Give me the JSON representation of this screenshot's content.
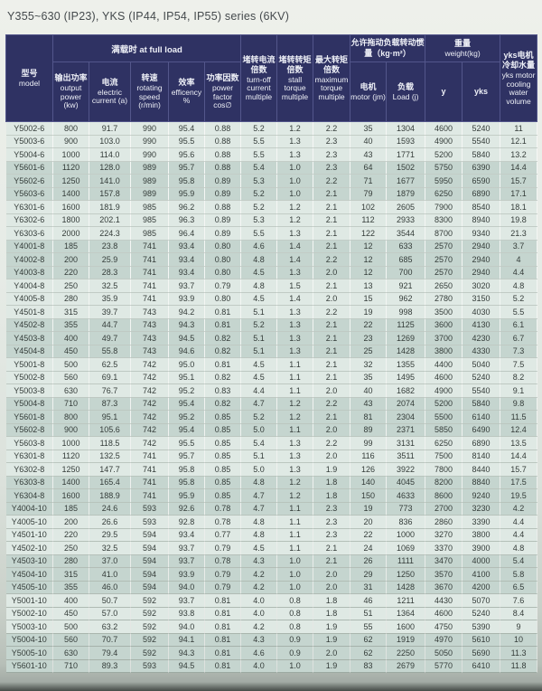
{
  "title": "Y355~630 (IP23), YKS (IP44, IP54, IP55) series (6KV)",
  "colors": {
    "header_bg": "#2f3263",
    "header_text": "#eef0f7",
    "band_light": "#dfe9e4",
    "band_dark": "#c5d5cf",
    "row_text": "#343c39",
    "title_text": "#454a4d",
    "page_bg_top": "#eef0eb",
    "page_bg_bottom": "#b7bfb8"
  },
  "table": {
    "header": {
      "model": {
        "zh": "型号",
        "en": "model"
      },
      "full_load_group": "满载时 at full load",
      "output_power": {
        "zh": "输出功率",
        "en": "output power (kw)"
      },
      "electric_current": {
        "zh": "电流",
        "en": "electric current (a)"
      },
      "rotating_speed": {
        "zh": "转速",
        "en": "rotating speed (r/min)"
      },
      "efficiency": {
        "zh": "效率",
        "en": "efficency %"
      },
      "power_factor": {
        "zh": "功率因数",
        "en": "power factor cos∅"
      },
      "turnoff_current": {
        "zh": "堵转电流倍数",
        "en": "turn-off current multiple"
      },
      "stall_torque": {
        "zh": "堵转转矩倍数",
        "en": "stall torque multiple"
      },
      "max_torque": {
        "zh": "最大转矩倍数",
        "en": "maximum torque multiple"
      },
      "inertia_group": "允许拖动负载转动惯量（kg·m²）",
      "motor_jm": {
        "zh": "电机",
        "en": "motor (jm)"
      },
      "load_j": {
        "zh": "负载",
        "en": "Load (j)"
      },
      "weight_group": {
        "zh": "重量",
        "en": "weight(kg)"
      },
      "weight_y": "y",
      "weight_yks": "yks",
      "cooling": {
        "zh": "yks电机冷却水量",
        "en": "yks motor cooling water volume"
      }
    },
    "rows": [
      [
        "Y5002-6",
        "800",
        "91.7",
        "990",
        "95.4",
        "0.88",
        "5.2",
        "1.2",
        "2.2",
        "35",
        "1304",
        "4600",
        "5240",
        "11"
      ],
      [
        "Y5003-6",
        "900",
        "103.0",
        "990",
        "95.5",
        "0.88",
        "5.5",
        "1.3",
        "2.3",
        "40",
        "1593",
        "4900",
        "5540",
        "12.1"
      ],
      [
        "Y5004-6",
        "1000",
        "114.0",
        "990",
        "95.6",
        "0.88",
        "5.5",
        "1.3",
        "2.3",
        "43",
        "1771",
        "5200",
        "5840",
        "13.2"
      ],
      [
        "Y5601-6",
        "1120",
        "128.0",
        "989",
        "95.7",
        "0.88",
        "5.4",
        "1.0",
        "2.3",
        "64",
        "1502",
        "5750",
        "6390",
        "14.4"
      ],
      [
        "Y5602-6",
        "1250",
        "141.0",
        "989",
        "95.8",
        "0.89",
        "5.3",
        "1.0",
        "2.2",
        "71",
        "1677",
        "5950",
        "6590",
        "15.7"
      ],
      [
        "Y5603-6",
        "1400",
        "157.8",
        "989",
        "95.9",
        "0.89",
        "5.2",
        "1.0",
        "2.1",
        "79",
        "1879",
        "6250",
        "6890",
        "17.1"
      ],
      [
        "Y6301-6",
        "1600",
        "181.9",
        "985",
        "96.2",
        "0.88",
        "5.2",
        "1.2",
        "2.1",
        "102",
        "2605",
        "7900",
        "8540",
        "18.1"
      ],
      [
        "Y6302-6",
        "1800",
        "202.1",
        "985",
        "96.3",
        "0.89",
        "5.3",
        "1.2",
        "2.1",
        "112",
        "2933",
        "8300",
        "8940",
        "19.8"
      ],
      [
        "Y6303-6",
        "2000",
        "224.3",
        "985",
        "96.4",
        "0.89",
        "5.5",
        "1.3",
        "2.1",
        "122",
        "3544",
        "8700",
        "9340",
        "21.3"
      ],
      [
        "Y4001-8",
        "185",
        "23.8",
        "741",
        "93.4",
        "0.80",
        "4.6",
        "1.4",
        "2.1",
        "12",
        "633",
        "2570",
        "2940",
        "3.7"
      ],
      [
        "Y4002-8",
        "200",
        "25.9",
        "741",
        "93.4",
        "0.80",
        "4.8",
        "1.4",
        "2.2",
        "12",
        "685",
        "2570",
        "2940",
        "4"
      ],
      [
        "Y4003-8",
        "220",
        "28.3",
        "741",
        "93.4",
        "0.80",
        "4.5",
        "1.3",
        "2.0",
        "12",
        "700",
        "2570",
        "2940",
        "4.4"
      ],
      [
        "Y4004-8",
        "250",
        "32.5",
        "741",
        "93.7",
        "0.79",
        "4.8",
        "1.5",
        "2.1",
        "13",
        "921",
        "2650",
        "3020",
        "4.8"
      ],
      [
        "Y4005-8",
        "280",
        "35.9",
        "741",
        "93.9",
        "0.80",
        "4.5",
        "1.4",
        "2.0",
        "15",
        "962",
        "2780",
        "3150",
        "5.2"
      ],
      [
        "Y4501-8",
        "315",
        "39.7",
        "743",
        "94.2",
        "0.81",
        "5.1",
        "1.3",
        "2.2",
        "19",
        "998",
        "3500",
        "4030",
        "5.5"
      ],
      [
        "Y4502-8",
        "355",
        "44.7",
        "743",
        "94.3",
        "0.81",
        "5.2",
        "1.3",
        "2.1",
        "22",
        "1125",
        "3600",
        "4130",
        "6.1"
      ],
      [
        "Y4503-8",
        "400",
        "49.7",
        "743",
        "94.5",
        "0.82",
        "5.1",
        "1.3",
        "2.1",
        "23",
        "1269",
        "3700",
        "4230",
        "6.7"
      ],
      [
        "Y4504-8",
        "450",
        "55.8",
        "743",
        "94.6",
        "0.82",
        "5.1",
        "1.3",
        "2.1",
        "25",
        "1428",
        "3800",
        "4330",
        "7.3"
      ],
      [
        "Y5001-8",
        "500",
        "62.5",
        "742",
        "95.0",
        "0.81",
        "4.5",
        "1.1",
        "2.1",
        "32",
        "1355",
        "4400",
        "5040",
        "7.5"
      ],
      [
        "Y5002-8",
        "560",
        "69.1",
        "742",
        "95.1",
        "0.82",
        "4.5",
        "1.1",
        "2.1",
        "35",
        "1495",
        "4600",
        "5240",
        "8.2"
      ],
      [
        "Y5003-8",
        "630",
        "76.7",
        "742",
        "95.2",
        "0.83",
        "4.4",
        "1.1",
        "2.0",
        "40",
        "1682",
        "4900",
        "5540",
        "9.1"
      ],
      [
        "Y5004-8",
        "710",
        "87.3",
        "742",
        "95.4",
        "0.82",
        "4.7",
        "1.2",
        "2.2",
        "43",
        "2074",
        "5200",
        "5840",
        "9.8"
      ],
      [
        "Y5601-8",
        "800",
        "95.1",
        "742",
        "95.2",
        "0.85",
        "5.2",
        "1.2",
        "2.1",
        "81",
        "2304",
        "5500",
        "6140",
        "11.5"
      ],
      [
        "Y5602-8",
        "900",
        "105.6",
        "742",
        "95.4",
        "0.85",
        "5.0",
        "1.1",
        "2.0",
        "89",
        "2371",
        "5850",
        "6490",
        "12.4"
      ],
      [
        "Y5603-8",
        "1000",
        "118.5",
        "742",
        "95.5",
        "0.85",
        "5.4",
        "1.3",
        "2.2",
        "99",
        "3131",
        "6250",
        "6890",
        "13.5"
      ],
      [
        "Y6301-8",
        "1120",
        "132.5",
        "741",
        "95.7",
        "0.85",
        "5.1",
        "1.3",
        "2.0",
        "116",
        "3511",
        "7500",
        "8140",
        "14.4"
      ],
      [
        "Y6302-8",
        "1250",
        "147.7",
        "741",
        "95.8",
        "0.85",
        "5.0",
        "1.3",
        "1.9",
        "126",
        "3922",
        "7800",
        "8440",
        "15.7"
      ],
      [
        "Y6303-8",
        "1400",
        "165.4",
        "741",
        "95.8",
        "0.85",
        "4.8",
        "1.2",
        "1.8",
        "140",
        "4045",
        "8200",
        "8840",
        "17.5"
      ],
      [
        "Y6304-8",
        "1600",
        "188.9",
        "741",
        "95.9",
        "0.85",
        "4.7",
        "1.2",
        "1.8",
        "150",
        "4633",
        "8600",
        "9240",
        "19.5"
      ],
      [
        "Y4004-10",
        "185",
        "24.6",
        "593",
        "92.6",
        "0.78",
        "4.7",
        "1.1",
        "2.3",
        "19",
        "773",
        "2700",
        "3230",
        "4.2"
      ],
      [
        "Y4005-10",
        "200",
        "26.6",
        "593",
        "92.8",
        "0.78",
        "4.8",
        "1.1",
        "2.3",
        "20",
        "836",
        "2860",
        "3390",
        "4.4"
      ],
      [
        "Y4501-10",
        "220",
        "29.5",
        "594",
        "93.4",
        "0.77",
        "4.8",
        "1.1",
        "2.3",
        "22",
        "1000",
        "3270",
        "3800",
        "4.4"
      ],
      [
        "Y4502-10",
        "250",
        "32.5",
        "594",
        "93.7",
        "0.79",
        "4.5",
        "1.1",
        "2.1",
        "24",
        "1069",
        "3370",
        "3900",
        "4.8"
      ],
      [
        "Y4503-10",
        "280",
        "37.0",
        "594",
        "93.7",
        "0.78",
        "4.3",
        "1.0",
        "2.1",
        "26",
        "1111",
        "3470",
        "4000",
        "5.4"
      ],
      [
        "Y4504-10",
        "315",
        "41.0",
        "594",
        "93.9",
        "0.79",
        "4.2",
        "1.0",
        "2.0",
        "29",
        "1250",
        "3570",
        "4100",
        "5.8"
      ],
      [
        "Y4505-10",
        "355",
        "46.0",
        "594",
        "94.0",
        "0.79",
        "4.2",
        "1.0",
        "2.0",
        "31",
        "1428",
        "3670",
        "4200",
        "6.5"
      ],
      [
        "Y5001-10",
        "400",
        "50.7",
        "592",
        "93.7",
        "0.81",
        "4.0",
        "0.8",
        "1.8",
        "46",
        "1211",
        "4430",
        "5070",
        "7.6"
      ],
      [
        "Y5002-10",
        "450",
        "57.0",
        "592",
        "93.8",
        "0.81",
        "4.0",
        "0.8",
        "1.8",
        "51",
        "1364",
        "4600",
        "5240",
        "8.4"
      ],
      [
        "Y5003-10",
        "500",
        "63.2",
        "592",
        "94.0",
        "0.81",
        "4.2",
        "0.8",
        "1.9",
        "55",
        "1600",
        "4750",
        "5390",
        "9"
      ],
      [
        "Y5004-10",
        "560",
        "70.7",
        "592",
        "94.1",
        "0.81",
        "4.3",
        "0.9",
        "1.9",
        "62",
        "1919",
        "4970",
        "5610",
        "10"
      ],
      [
        "Y5005-10",
        "630",
        "79.4",
        "592",
        "94.3",
        "0.81",
        "4.6",
        "0.9",
        "2.0",
        "62",
        "2250",
        "5050",
        "5690",
        "11.3"
      ],
      [
        "Y5601-10",
        "710",
        "89.3",
        "593",
        "94.5",
        "0.81",
        "4.0",
        "1.0",
        "1.9",
        "83",
        "2679",
        "5770",
        "6410",
        "11.8"
      ]
    ]
  }
}
